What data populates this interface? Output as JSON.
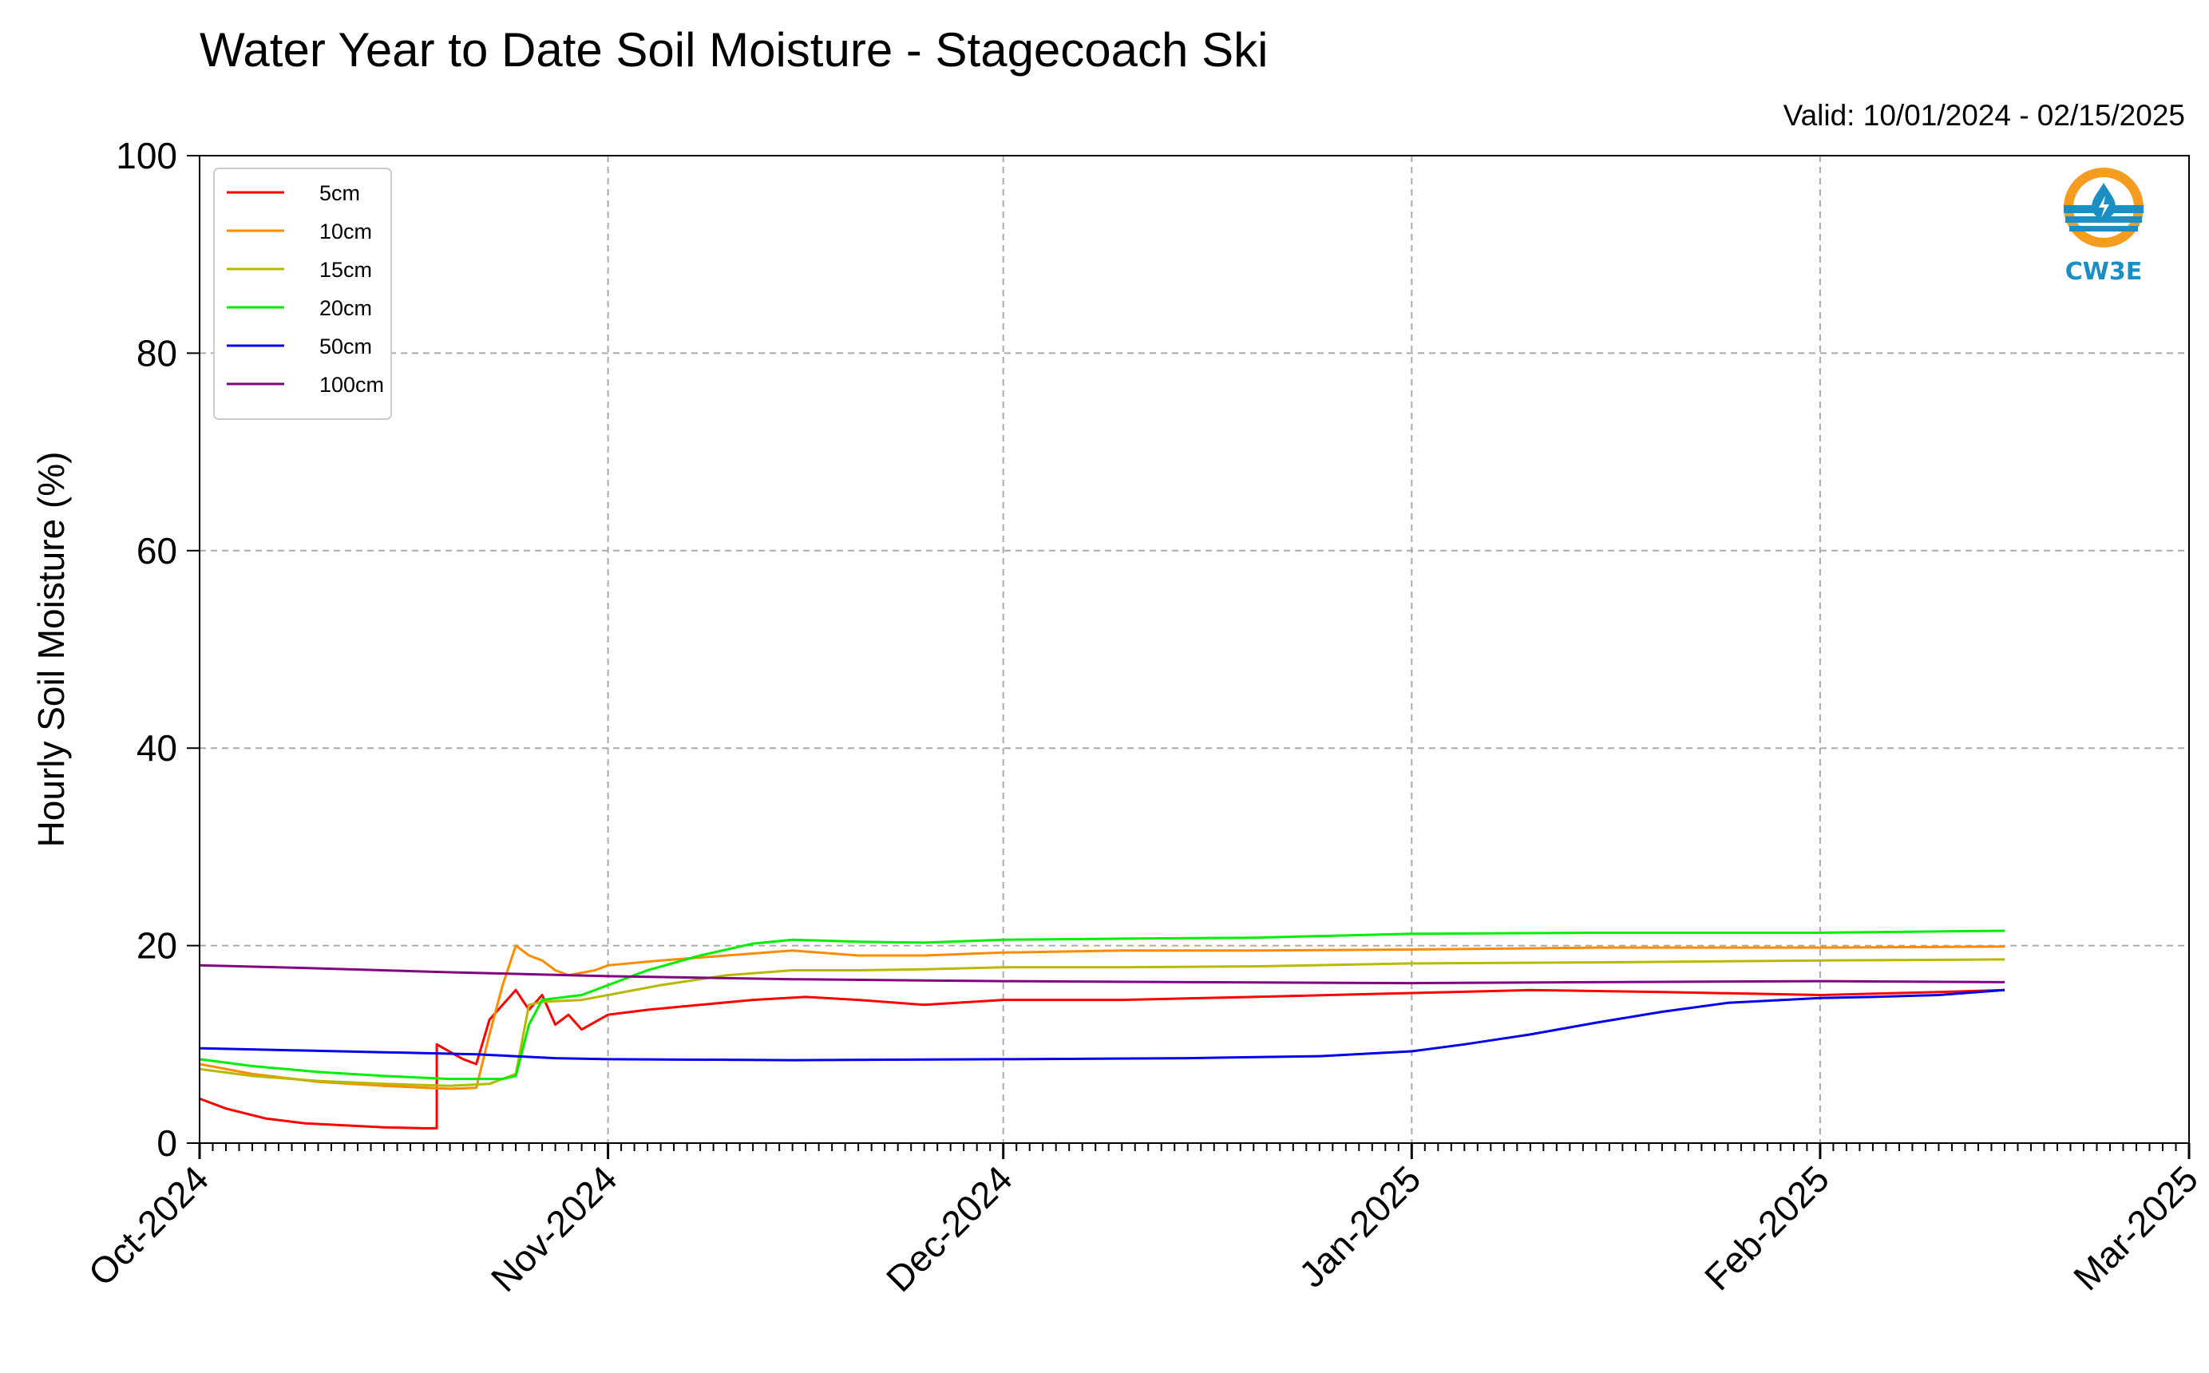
{
  "title": "Water Year to Date Soil Moisture - Stagecoach Ski",
  "valid_text": "Valid: 10/01/2024 - 02/15/2025",
  "logo": {
    "text": "CW3E",
    "icon": "cw3e-water-drop-icon"
  },
  "chart_data": {
    "type": "line",
    "title": "Water Year to Date Soil Moisture - Stagecoach Ski",
    "xlabel": "",
    "ylabel": "Hourly Soil Moisture (%)",
    "xlim": [
      "2024-10-01",
      "2025-03-01"
    ],
    "ylim": [
      0,
      100
    ],
    "yticks": [
      0,
      20,
      40,
      60,
      80,
      100
    ],
    "xticks": [
      "2024-10-01",
      "2024-11-01",
      "2024-12-01",
      "2025-01-01",
      "2025-02-01",
      "2025-03-01"
    ],
    "xtick_labels": [
      "Oct-2024",
      "Nov-2024",
      "Dec-2024",
      "Jan-2025",
      "Feb-2025",
      "Mar-2025"
    ],
    "grid": true,
    "legend_position": "top-left",
    "series": [
      {
        "name": "5cm",
        "color": "#ff0000",
        "points": [
          [
            "2024-10-01",
            4.5
          ],
          [
            "2024-10-03",
            3.5
          ],
          [
            "2024-10-06",
            2.5
          ],
          [
            "2024-10-09",
            2.0
          ],
          [
            "2024-10-12",
            1.8
          ],
          [
            "2024-10-15",
            1.6
          ],
          [
            "2024-10-18",
            1.5
          ],
          [
            "2024-10-19",
            1.5
          ],
          [
            "2024-10-19",
            10.0
          ],
          [
            "2024-10-21",
            8.5
          ],
          [
            "2024-10-22",
            8.0
          ],
          [
            "2024-10-23",
            12.5
          ],
          [
            "2024-10-24",
            14.0
          ],
          [
            "2024-10-25",
            15.5
          ],
          [
            "2024-10-26",
            13.5
          ],
          [
            "2024-10-27",
            15.0
          ],
          [
            "2024-10-28",
            12.0
          ],
          [
            "2024-10-29",
            13.0
          ],
          [
            "2024-10-30",
            11.5
          ],
          [
            "2024-11-01",
            13.0
          ],
          [
            "2024-11-04",
            13.5
          ],
          [
            "2024-11-08",
            14.0
          ],
          [
            "2024-11-12",
            14.5
          ],
          [
            "2024-11-16",
            14.8
          ],
          [
            "2024-11-20",
            14.5
          ],
          [
            "2024-11-25",
            14.0
          ],
          [
            "2024-12-01",
            14.5
          ],
          [
            "2024-12-10",
            14.5
          ],
          [
            "2024-12-20",
            14.8
          ],
          [
            "2025-01-01",
            15.2
          ],
          [
            "2025-01-10",
            15.5
          ],
          [
            "2025-01-20",
            15.3
          ],
          [
            "2025-02-01",
            15.0
          ],
          [
            "2025-02-10",
            15.3
          ],
          [
            "2025-02-15",
            15.5
          ]
        ]
      },
      {
        "name": "10cm",
        "color": "#ff8c00",
        "points": [
          [
            "2024-10-01",
            8.0
          ],
          [
            "2024-10-05",
            7.0
          ],
          [
            "2024-10-10",
            6.2
          ],
          [
            "2024-10-15",
            5.8
          ],
          [
            "2024-10-20",
            5.5
          ],
          [
            "2024-10-22",
            5.6
          ],
          [
            "2024-10-23",
            11.0
          ],
          [
            "2024-10-24",
            16.0
          ],
          [
            "2024-10-25",
            20.0
          ],
          [
            "2024-10-26",
            19.0
          ],
          [
            "2024-10-27",
            18.5
          ],
          [
            "2024-10-28",
            17.5
          ],
          [
            "2024-10-29",
            17.0
          ],
          [
            "2024-10-31",
            17.5
          ],
          [
            "2024-11-01",
            18.0
          ],
          [
            "2024-11-05",
            18.5
          ],
          [
            "2024-11-10",
            19.0
          ],
          [
            "2024-11-15",
            19.5
          ],
          [
            "2024-11-20",
            19.0
          ],
          [
            "2024-11-25",
            19.0
          ],
          [
            "2024-12-01",
            19.3
          ],
          [
            "2024-12-10",
            19.5
          ],
          [
            "2024-12-20",
            19.5
          ],
          [
            "2025-01-01",
            19.6
          ],
          [
            "2025-01-15",
            19.8
          ],
          [
            "2025-02-01",
            19.8
          ],
          [
            "2025-02-15",
            19.9
          ]
        ]
      },
      {
        "name": "15cm",
        "color": "#b8b800",
        "points": [
          [
            "2024-10-01",
            7.5
          ],
          [
            "2024-10-05",
            6.8
          ],
          [
            "2024-10-10",
            6.3
          ],
          [
            "2024-10-15",
            6.0
          ],
          [
            "2024-10-20",
            5.8
          ],
          [
            "2024-10-23",
            6.0
          ],
          [
            "2024-10-25",
            7.0
          ],
          [
            "2024-10-26",
            14.0
          ],
          [
            "2024-10-27",
            14.3
          ],
          [
            "2024-10-30",
            14.5
          ],
          [
            "2024-11-01",
            15.0
          ],
          [
            "2024-11-05",
            16.0
          ],
          [
            "2024-11-10",
            17.0
          ],
          [
            "2024-11-15",
            17.5
          ],
          [
            "2024-11-20",
            17.5
          ],
          [
            "2024-11-25",
            17.6
          ],
          [
            "2024-12-01",
            17.8
          ],
          [
            "2024-12-10",
            17.8
          ],
          [
            "2024-12-20",
            17.9
          ],
          [
            "2025-01-01",
            18.2
          ],
          [
            "2025-01-15",
            18.3
          ],
          [
            "2025-02-01",
            18.5
          ],
          [
            "2025-02-15",
            18.6
          ]
        ]
      },
      {
        "name": "20cm",
        "color": "#00ee00",
        "points": [
          [
            "2024-10-01",
            8.5
          ],
          [
            "2024-10-05",
            7.8
          ],
          [
            "2024-10-10",
            7.2
          ],
          [
            "2024-10-15",
            6.8
          ],
          [
            "2024-10-20",
            6.5
          ],
          [
            "2024-10-24",
            6.5
          ],
          [
            "2024-10-25",
            6.8
          ],
          [
            "2024-10-26",
            12.0
          ],
          [
            "2024-10-27",
            14.5
          ],
          [
            "2024-10-30",
            15.0
          ],
          [
            "2024-11-01",
            16.0
          ],
          [
            "2024-11-04",
            17.5
          ],
          [
            "2024-11-08",
            19.0
          ],
          [
            "2024-11-12",
            20.2
          ],
          [
            "2024-11-15",
            20.6
          ],
          [
            "2024-11-20",
            20.4
          ],
          [
            "2024-11-25",
            20.3
          ],
          [
            "2024-12-01",
            20.6
          ],
          [
            "2024-12-10",
            20.7
          ],
          [
            "2024-12-20",
            20.8
          ],
          [
            "2025-01-01",
            21.2
          ],
          [
            "2025-01-15",
            21.3
          ],
          [
            "2025-02-01",
            21.3
          ],
          [
            "2025-02-15",
            21.5
          ]
        ]
      },
      {
        "name": "50cm",
        "color": "#0000ee",
        "points": [
          [
            "2024-10-01",
            9.6
          ],
          [
            "2024-10-08",
            9.4
          ],
          [
            "2024-10-15",
            9.2
          ],
          [
            "2024-10-22",
            9.0
          ],
          [
            "2024-10-28",
            8.6
          ],
          [
            "2024-11-01",
            8.5
          ],
          [
            "2024-11-15",
            8.4
          ],
          [
            "2024-12-01",
            8.5
          ],
          [
            "2024-12-15",
            8.6
          ],
          [
            "2024-12-25",
            8.8
          ],
          [
            "2025-01-01",
            9.3
          ],
          [
            "2025-01-05",
            10.0
          ],
          [
            "2025-01-10",
            11.0
          ],
          [
            "2025-01-15",
            12.2
          ],
          [
            "2025-01-20",
            13.3
          ],
          [
            "2025-01-25",
            14.2
          ],
          [
            "2025-02-01",
            14.7
          ],
          [
            "2025-02-05",
            14.8
          ],
          [
            "2025-02-10",
            15.0
          ],
          [
            "2025-02-15",
            15.5
          ]
        ]
      },
      {
        "name": "100cm",
        "color": "#800080",
        "points": [
          [
            "2024-10-01",
            18.0
          ],
          [
            "2024-10-10",
            17.7
          ],
          [
            "2024-10-20",
            17.3
          ],
          [
            "2024-11-01",
            16.9
          ],
          [
            "2024-11-15",
            16.6
          ],
          [
            "2024-12-01",
            16.4
          ],
          [
            "2024-12-15",
            16.3
          ],
          [
            "2025-01-01",
            16.2
          ],
          [
            "2025-01-15",
            16.3
          ],
          [
            "2025-02-01",
            16.4
          ],
          [
            "2025-02-15",
            16.3
          ]
        ]
      }
    ]
  }
}
